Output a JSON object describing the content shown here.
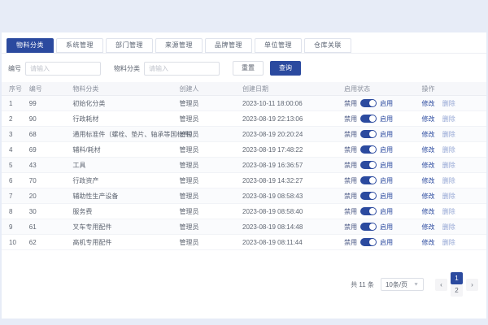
{
  "tabs": [
    {
      "label": "物料分类",
      "active": true
    },
    {
      "label": "系统管理",
      "active": false
    },
    {
      "label": "部门管理",
      "active": false
    },
    {
      "label": "来源管理",
      "active": false
    },
    {
      "label": "品牌管理",
      "active": false
    },
    {
      "label": "单位管理",
      "active": false
    },
    {
      "label": "仓库关联",
      "active": false
    }
  ],
  "filter": {
    "fields": [
      {
        "label": "编号",
        "value": "",
        "placeholder": "请输入"
      },
      {
        "label": "物料分类",
        "value": "",
        "placeholder": "请输入"
      }
    ],
    "reset_label": "重置",
    "search_label": "查询"
  },
  "table": {
    "headers": [
      "序号",
      "编号",
      "物料分类",
      "创建人",
      "创建日期",
      "启用状态",
      "操作"
    ],
    "status_off_label": "禁用",
    "status_on_label": "启用",
    "action_edit_label": "修改",
    "action_delete_label": "删除",
    "rows": [
      {
        "seq": "1",
        "code": "99",
        "category": "初始化分类",
        "creator": "管理员",
        "created": "2023-10-11 18:00:06",
        "enabled": true
      },
      {
        "seq": "2",
        "code": "90",
        "category": "行政耗材",
        "creator": "管理员",
        "created": "2023-08-19 22:13:06",
        "enabled": true
      },
      {
        "seq": "3",
        "code": "68",
        "category": "通用标准件（螺栓、垫片、轴承等国标件）",
        "creator": "管理员",
        "created": "2023-08-19 20:20:24",
        "enabled": true
      },
      {
        "seq": "4",
        "code": "69",
        "category": "辅料/耗材",
        "creator": "管理员",
        "created": "2023-08-19 17:48:22",
        "enabled": true
      },
      {
        "seq": "5",
        "code": "43",
        "category": "工具",
        "creator": "管理员",
        "created": "2023-08-19 16:36:57",
        "enabled": true
      },
      {
        "seq": "6",
        "code": "70",
        "category": "行政资产",
        "creator": "管理员",
        "created": "2023-08-19 14:32:27",
        "enabled": true
      },
      {
        "seq": "7",
        "code": "20",
        "category": "辅助性生产设备",
        "creator": "管理员",
        "created": "2023-08-19 08:58:43",
        "enabled": true
      },
      {
        "seq": "8",
        "code": "30",
        "category": "服务费",
        "creator": "管理员",
        "created": "2023-08-19 08:58:40",
        "enabled": true
      },
      {
        "seq": "9",
        "code": "61",
        "category": "叉车专用配件",
        "creator": "管理员",
        "created": "2023-08-19 08:14:48",
        "enabled": true
      },
      {
        "seq": "10",
        "code": "62",
        "category": "高机专用配件",
        "creator": "管理员",
        "created": "2023-08-19 08:11:44",
        "enabled": true
      }
    ]
  },
  "pagination": {
    "total_text": "共 11 条",
    "page_size_label": "10条/页",
    "prev_label": "‹",
    "next_label": "›",
    "pages": [
      "1",
      "2"
    ],
    "active_page": "1"
  },
  "colors": {
    "primary": "#2b4a9f",
    "page_background": "#e7ecf7"
  }
}
